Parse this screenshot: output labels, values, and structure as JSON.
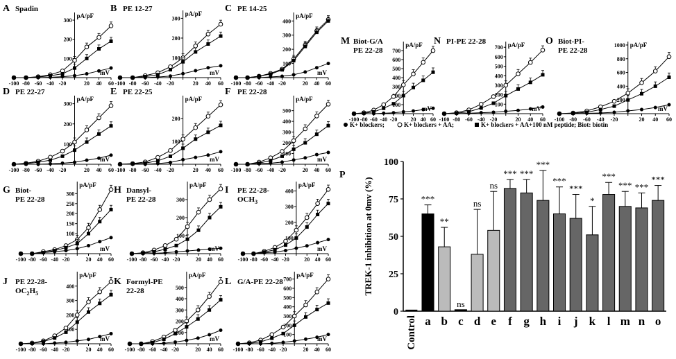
{
  "figure": {
    "legend": {
      "items": [
        {
          "marker": "filled-circle",
          "label": "K+ blockers;"
        },
        {
          "marker": "open-circle",
          "label": "K+ blockers + AA;"
        },
        {
          "marker": "filled-square",
          "label": "K+ blockers + AA+100 nM peptide; Biot: biotin"
        }
      ]
    }
  },
  "chart_data": [
    {
      "type": "line",
      "panel": "A",
      "title": "Spadin",
      "xlabel": "mV",
      "ylabel": "pA/pF",
      "xlim": [
        -100,
        60
      ],
      "ylim": [
        0,
        340
      ],
      "y_ticks": [
        100,
        200,
        300
      ],
      "x": [
        -100,
        -80,
        -60,
        -40,
        -20,
        0,
        20,
        40,
        60
      ],
      "series": [
        {
          "name": "K+ blockers",
          "values": [
            0,
            0,
            0,
            2,
            5,
            10,
            20,
            35,
            50
          ]
        },
        {
          "name": "K+ blockers + AA",
          "values": [
            0,
            0,
            5,
            15,
            35,
            90,
            160,
            210,
            270
          ]
        },
        {
          "name": "K+ blockers + AA+100 nM peptide",
          "values": [
            0,
            0,
            3,
            10,
            20,
            50,
            100,
            150,
            190
          ]
        }
      ]
    },
    {
      "type": "line",
      "panel": "B",
      "title": "PE 12-27",
      "xlabel": "mV",
      "ylabel": "pA/pF",
      "xlim": [
        -100,
        60
      ],
      "ylim": [
        0,
        340
      ],
      "y_ticks": [
        100,
        200,
        300
      ],
      "x": [
        -100,
        -80,
        -60,
        -40,
        -20,
        0,
        20,
        40,
        60
      ],
      "series": [
        {
          "name": "K+ blockers",
          "values": [
            0,
            0,
            0,
            3,
            8,
            20,
            35,
            50,
            60
          ]
        },
        {
          "name": "K+ blockers + AA",
          "values": [
            0,
            0,
            10,
            25,
            55,
            100,
            160,
            220,
            270
          ]
        },
        {
          "name": "K+ blockers + AA+100 nM peptide",
          "values": [
            0,
            0,
            5,
            15,
            40,
            80,
            130,
            170,
            210
          ]
        }
      ]
    },
    {
      "type": "line",
      "panel": "C",
      "title": "PE 14-25",
      "xlabel": "mV",
      "ylabel": "pA/pF",
      "xlim": [
        -100,
        60
      ],
      "ylim": [
        0,
        460
      ],
      "y_ticks": [
        100,
        200,
        300,
        400
      ],
      "x": [
        -100,
        -80,
        -60,
        -40,
        -20,
        0,
        20,
        40,
        60
      ],
      "series": [
        {
          "name": "K+ blockers",
          "values": [
            0,
            0,
            0,
            5,
            10,
            20,
            40,
            70,
            100
          ]
        },
        {
          "name": "K+ blockers + AA",
          "values": [
            0,
            0,
            10,
            30,
            60,
            130,
            230,
            330,
            410
          ]
        },
        {
          "name": "K+ blockers + AA+100 nM peptide",
          "values": [
            0,
            0,
            10,
            25,
            55,
            120,
            220,
            320,
            400
          ]
        }
      ]
    },
    {
      "type": "line",
      "panel": "D",
      "title": "PE 22-27",
      "xlabel": "mV",
      "ylabel": "pA/pF",
      "xlim": [
        -100,
        60
      ],
      "ylim": [
        0,
        340
      ],
      "y_ticks": [
        100,
        200,
        300
      ],
      "x": [
        -100,
        -80,
        -60,
        -40,
        -20,
        0,
        20,
        40,
        60
      ],
      "series": [
        {
          "name": "K+ blockers",
          "values": [
            0,
            0,
            0,
            2,
            5,
            10,
            20,
            30,
            45
          ]
        },
        {
          "name": "K+ blockers + AA",
          "values": [
            0,
            5,
            15,
            35,
            65,
            110,
            170,
            230,
            290
          ]
        },
        {
          "name": "K+ blockers + AA+100 nM peptide",
          "values": [
            0,
            3,
            10,
            20,
            40,
            70,
            110,
            150,
            190
          ]
        }
      ]
    },
    {
      "type": "line",
      "panel": "E",
      "title": "PE 22-25",
      "xlabel": "mV",
      "ylabel": "pA/pF",
      "xlim": [
        -100,
        60
      ],
      "ylim": [
        0,
        300
      ],
      "y_ticks": [
        100,
        200
      ],
      "x": [
        -100,
        -80,
        -60,
        -40,
        -20,
        0,
        20,
        40,
        60
      ],
      "series": [
        {
          "name": "K+ blockers",
          "values": [
            0,
            0,
            0,
            3,
            8,
            20,
            30,
            40,
            55
          ]
        },
        {
          "name": "K+ blockers + AA",
          "values": [
            0,
            3,
            10,
            30,
            60,
            110,
            160,
            210,
            260
          ]
        },
        {
          "name": "K+ blockers + AA+100 nM peptide",
          "values": [
            0,
            2,
            5,
            15,
            35,
            70,
            110,
            140,
            170
          ]
        }
      ]
    },
    {
      "type": "line",
      "panel": "F",
      "title": "PE 22-28",
      "xlabel": "mV",
      "ylabel": "pA/pF",
      "xlim": [
        -100,
        60
      ],
      "ylim": [
        0,
        640
      ],
      "y_ticks": [
        100,
        200,
        300,
        400,
        500
      ],
      "x": [
        -100,
        -80,
        -60,
        -40,
        -20,
        0,
        20,
        40,
        60
      ],
      "series": [
        {
          "name": "K+ blockers",
          "values": [
            0,
            0,
            5,
            10,
            20,
            40,
            60,
            90,
            110
          ]
        },
        {
          "name": "K+ blockers + AA",
          "values": [
            0,
            0,
            20,
            60,
            120,
            220,
            330,
            450,
            560
          ]
        },
        {
          "name": "K+ blockers + AA+100 nM peptide",
          "values": [
            0,
            0,
            10,
            35,
            75,
            140,
            200,
            280,
            360
          ]
        }
      ]
    },
    {
      "type": "line",
      "panel": "G",
      "title": "Biot-\nPE 22-28",
      "xlabel": "mV",
      "ylabel": "pA/pF",
      "xlim": [
        -100,
        60
      ],
      "ylim": [
        0,
        360
      ],
      "y_ticks": [
        100,
        150,
        200,
        250,
        300
      ],
      "x": [
        -100,
        -80,
        -60,
        -40,
        -20,
        0,
        20,
        40,
        60
      ],
      "series": [
        {
          "name": "K+ blockers",
          "values": [
            0,
            0,
            5,
            10,
            15,
            25,
            40,
            60,
            80
          ]
        },
        {
          "name": "K+ blockers + AA",
          "values": [
            0,
            0,
            10,
            20,
            40,
            70,
            130,
            220,
            320
          ]
        },
        {
          "name": "K+ blockers + AA+100 nM peptide",
          "values": [
            0,
            0,
            5,
            15,
            30,
            50,
            100,
            160,
            220
          ]
        }
      ]
    },
    {
      "type": "line",
      "panel": "H",
      "title": "Dansyl-\nPE 22-28",
      "xlabel": "mV",
      "ylabel": "pA/pF",
      "xlim": [
        -100,
        60
      ],
      "ylim": [
        0,
        400
      ],
      "y_ticks": [
        100,
        200,
        300
      ],
      "x": [
        -100,
        -80,
        -60,
        -40,
        -20,
        0,
        20,
        40,
        60
      ],
      "series": [
        {
          "name": "K+ blockers",
          "values": [
            0,
            0,
            2,
            5,
            10,
            15,
            20,
            25,
            30
          ]
        },
        {
          "name": "K+ blockers + AA",
          "values": [
            0,
            5,
            20,
            45,
            80,
            150,
            230,
            300,
            360
          ]
        },
        {
          "name": "K+ blockers + AA+100 nM peptide",
          "values": [
            0,
            3,
            10,
            25,
            45,
            80,
            130,
            200,
            260
          ]
        }
      ]
    },
    {
      "type": "line",
      "panel": "I",
      "title": "PE 22-28-\nOCH3",
      "xlabel": "mV",
      "ylabel": "pA/pF",
      "xlim": [
        -100,
        60
      ],
      "ylim": [
        0,
        460
      ],
      "y_ticks": [
        100,
        200,
        300,
        400
      ],
      "x": [
        -100,
        -80,
        -60,
        -40,
        -20,
        0,
        20,
        40,
        60
      ],
      "series": [
        {
          "name": "K+ blockers",
          "values": [
            0,
            0,
            5,
            10,
            20,
            35,
            50,
            70,
            90
          ]
        },
        {
          "name": "K+ blockers + AA",
          "values": [
            0,
            0,
            15,
            40,
            80,
            150,
            230,
            320,
            410
          ]
        },
        {
          "name": "K+ blockers + AA+100 nM peptide",
          "values": [
            0,
            0,
            10,
            25,
            55,
            100,
            170,
            250,
            320
          ]
        }
      ]
    },
    {
      "type": "line",
      "panel": "J",
      "title": "PE 22-28-\nOC2H5",
      "xlabel": "mV",
      "ylabel": "pA/pF",
      "xlim": [
        -100,
        60
      ],
      "ylim": [
        0,
        500
      ],
      "y_ticks": [
        100,
        200,
        300,
        400
      ],
      "x": [
        -100,
        -80,
        -60,
        -40,
        -20,
        0,
        20,
        40,
        60
      ],
      "series": [
        {
          "name": "K+ blockers",
          "values": [
            0,
            0,
            0,
            5,
            10,
            20,
            30,
            50,
            70
          ]
        },
        {
          "name": "K+ blockers + AA",
          "values": [
            0,
            5,
            20,
            55,
            110,
            200,
            290,
            360,
            430
          ]
        },
        {
          "name": "K+ blockers + AA+100 nM peptide",
          "values": [
            0,
            3,
            15,
            40,
            80,
            150,
            220,
            280,
            340
          ]
        }
      ]
    },
    {
      "type": "line",
      "panel": "K",
      "title": "Formyl-PE\n22-28",
      "xlabel": "mV",
      "ylabel": "pA/pF",
      "xlim": [
        -100,
        60
      ],
      "ylim": [
        0,
        640
      ],
      "y_ticks": [
        100,
        200,
        300,
        400,
        500
      ],
      "x": [
        -100,
        -80,
        -60,
        -40,
        -20,
        0,
        20,
        40,
        60
      ],
      "series": [
        {
          "name": "K+ blockers",
          "values": [
            0,
            0,
            0,
            5,
            15,
            30,
            50,
            80,
            120
          ]
        },
        {
          "name": "K+ blockers + AA",
          "values": [
            0,
            0,
            20,
            60,
            120,
            200,
            300,
            420,
            550
          ]
        },
        {
          "name": "K+ blockers + AA+100 nM peptide",
          "values": [
            0,
            0,
            10,
            40,
            90,
            150,
            220,
            300,
            390
          ]
        }
      ]
    },
    {
      "type": "line",
      "panel": "L",
      "title": "G/A-PE 22-28",
      "xlabel": "mV",
      "ylabel": "pA/pF",
      "xlim": [
        -100,
        60
      ],
      "ylim": [
        0,
        780
      ],
      "y_ticks": [
        100,
        200,
        300,
        400,
        500,
        600,
        700
      ],
      "x": [
        -100,
        -80,
        -60,
        -40,
        -20,
        0,
        20,
        40,
        60
      ],
      "series": [
        {
          "name": "K+ blockers",
          "values": [
            0,
            0,
            0,
            5,
            15,
            30,
            50,
            70,
            100
          ]
        },
        {
          "name": "K+ blockers + AA",
          "values": [
            0,
            10,
            40,
            100,
            180,
            300,
            420,
            560,
            700
          ]
        },
        {
          "name": "K+ blockers + AA+100 nM peptide",
          "values": [
            0,
            5,
            20,
            60,
            110,
            200,
            290,
            370,
            440
          ]
        }
      ]
    },
    {
      "type": "line",
      "panel": "M",
      "title": "Biot-G/A\nPE 22-28",
      "xlabel": "mV",
      "ylabel": "pA/pF",
      "xlim": [
        -100,
        60
      ],
      "ylim": [
        0,
        800
      ],
      "y_ticks": [
        100,
        200,
        300,
        400,
        500,
        600,
        700
      ],
      "x": [
        -100,
        -80,
        -60,
        -40,
        -20,
        0,
        20,
        40,
        60
      ],
      "series": [
        {
          "name": "K+ blockers",
          "values": [
            0,
            0,
            0,
            5,
            10,
            20,
            30,
            45,
            60
          ]
        },
        {
          "name": "K+ blockers + AA",
          "values": [
            0,
            10,
            40,
            100,
            190,
            320,
            440,
            570,
            700
          ]
        },
        {
          "name": "K+ blockers + AA+100 nM peptide",
          "values": [
            0,
            5,
            20,
            60,
            110,
            200,
            290,
            370,
            460
          ]
        }
      ]
    },
    {
      "type": "line",
      "panel": "N",
      "title": "PI-PE 22-28",
      "xlabel": "mV",
      "ylabel": "pA/pF",
      "xlim": [
        -100,
        60
      ],
      "ylim": [
        0,
        760
      ],
      "y_ticks": [
        100,
        200,
        300,
        400,
        500,
        600,
        700
      ],
      "x": [
        -100,
        -80,
        -60,
        -40,
        -20,
        0,
        20,
        40,
        60
      ],
      "series": [
        {
          "name": "K+ blockers",
          "values": [
            0,
            0,
            5,
            10,
            15,
            25,
            35,
            50,
            70
          ]
        },
        {
          "name": "K+ blockers + AA",
          "values": [
            0,
            10,
            40,
            100,
            180,
            300,
            420,
            540,
            670
          ]
        },
        {
          "name": "K+ blockers + AA+100 nM peptide",
          "values": [
            0,
            5,
            20,
            60,
            110,
            190,
            260,
            330,
            410
          ]
        }
      ]
    },
    {
      "type": "line",
      "panel": "O",
      "title": "Biot-PI-\nPE 22-28",
      "xlabel": "mV",
      "ylabel": "pA/pF",
      "xlim": [
        -100,
        60
      ],
      "ylim": [
        0,
        1050
      ],
      "y_ticks": [
        200,
        400,
        600,
        800,
        1000
      ],
      "x": [
        -100,
        -80,
        -60,
        -40,
        -20,
        0,
        20,
        40,
        60
      ],
      "series": [
        {
          "name": "K+ blockers",
          "values": [
            0,
            0,
            5,
            10,
            20,
            40,
            60,
            90,
            130
          ]
        },
        {
          "name": "K+ blockers + AA",
          "values": [
            0,
            10,
            40,
            100,
            180,
            300,
            450,
            620,
            830
          ]
        },
        {
          "name": "K+ blockers + AA+100 nM peptide",
          "values": [
            0,
            5,
            20,
            60,
            110,
            200,
            290,
            400,
            530
          ]
        }
      ]
    },
    {
      "type": "bar",
      "panel": "P",
      "title": "",
      "xlabel": "",
      "ylabel": "TREK-1 inhibition at 0mv (%)",
      "ylim": [
        0,
        100
      ],
      "y_ticks": [
        0,
        25,
        50,
        75,
        100
      ],
      "categories": [
        "Control",
        "a",
        "b",
        "c",
        "d",
        "e",
        "f",
        "g",
        "h",
        "i",
        "j",
        "k",
        "l",
        "m",
        "n",
        "o"
      ],
      "values": [
        0,
        65,
        43,
        1,
        38,
        54,
        82,
        79,
        74,
        65,
        62,
        51,
        78,
        70,
        69,
        74
      ],
      "errors": [
        0,
        6,
        13,
        0,
        30,
        26,
        6,
        9,
        20,
        18,
        16,
        19,
        8,
        10,
        10,
        10
      ],
      "significance": [
        "",
        "***",
        "**",
        "ns",
        "ns",
        "ns",
        "***",
        "***",
        "***",
        "***",
        "***",
        "*",
        "***",
        "***",
        "***",
        "***"
      ],
      "bar_colors": [
        "#000000",
        "#000000",
        "#bbbbbb",
        "#000000",
        "#bbbbbb",
        "#bbbbbb",
        "#666666",
        "#666666",
        "#666666",
        "#666666",
        "#666666",
        "#666666",
        "#666666",
        "#666666",
        "#666666",
        "#666666"
      ]
    }
  ]
}
